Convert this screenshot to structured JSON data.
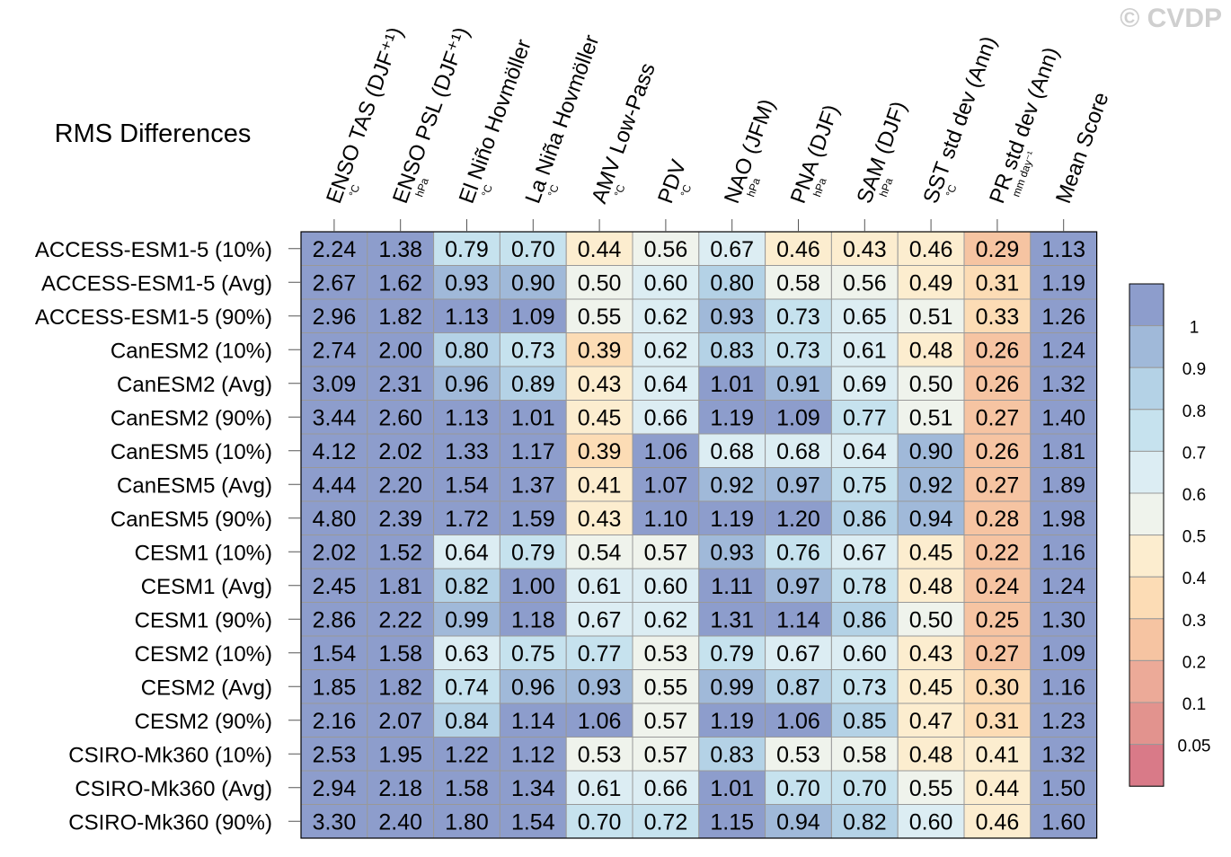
{
  "watermark": "© CVDP",
  "chart_data": {
    "type": "heatmap",
    "title": "RMS Differences",
    "columns": [
      {
        "label": "ENSO TAS (DJF⁺¹)",
        "unit": "°C"
      },
      {
        "label": "ENSO PSL (DJF⁺¹)",
        "unit": "hPa"
      },
      {
        "label": "El Niño Hovmöller",
        "unit": "°C"
      },
      {
        "label": "La Niña Hovmöller",
        "unit": "°C"
      },
      {
        "label": "AMV Low-Pass",
        "unit": "°C"
      },
      {
        "label": "PDV",
        "unit": "°C"
      },
      {
        "label": "NAO (JFM)",
        "unit": "hPa"
      },
      {
        "label": "PNA (DJF)",
        "unit": "hPa"
      },
      {
        "label": "SAM (DJF)",
        "unit": "hPa"
      },
      {
        "label": "SST std dev (Ann)",
        "unit": "°C"
      },
      {
        "label": "PR std dev (Ann)",
        "unit": "mm day⁻¹"
      },
      {
        "label": "Mean Score",
        "unit": ""
      }
    ],
    "rows": [
      "ACCESS-ESM1-5 (10%)",
      "ACCESS-ESM1-5 (Avg)",
      "ACCESS-ESM1-5 (90%)",
      "CanESM2 (10%)",
      "CanESM2 (Avg)",
      "CanESM2 (90%)",
      "CanESM5 (10%)",
      "CanESM5 (Avg)",
      "CanESM5 (90%)",
      "CESM1 (10%)",
      "CESM1 (Avg)",
      "CESM1 (90%)",
      "CESM2 (10%)",
      "CESM2 (Avg)",
      "CESM2 (90%)",
      "CSIRO-Mk360 (10%)",
      "CSIRO-Mk360 (Avg)",
      "CSIRO-Mk360 (90%)"
    ],
    "values": [
      [
        "2.24",
        "1.38",
        "0.79",
        "0.70",
        "0.44",
        "0.56",
        "0.67",
        "0.46",
        "0.43",
        "0.46",
        "0.29",
        "1.13"
      ],
      [
        "2.67",
        "1.62",
        "0.93",
        "0.90",
        "0.50",
        "0.60",
        "0.80",
        "0.58",
        "0.56",
        "0.49",
        "0.31",
        "1.19"
      ],
      [
        "2.96",
        "1.82",
        "1.13",
        "1.09",
        "0.55",
        "0.62",
        "0.93",
        "0.73",
        "0.65",
        "0.51",
        "0.33",
        "1.26"
      ],
      [
        "2.74",
        "2.00",
        "0.80",
        "0.73",
        "0.39",
        "0.62",
        "0.83",
        "0.73",
        "0.61",
        "0.48",
        "0.26",
        "1.24"
      ],
      [
        "3.09",
        "2.31",
        "0.96",
        "0.89",
        "0.43",
        "0.64",
        "1.01",
        "0.91",
        "0.69",
        "0.50",
        "0.26",
        "1.32"
      ],
      [
        "3.44",
        "2.60",
        "1.13",
        "1.01",
        "0.45",
        "0.66",
        "1.19",
        "1.09",
        "0.77",
        "0.51",
        "0.27",
        "1.40"
      ],
      [
        "4.12",
        "2.02",
        "1.33",
        "1.17",
        "0.39",
        "1.06",
        "0.68",
        "0.68",
        "0.64",
        "0.90",
        "0.26",
        "1.81"
      ],
      [
        "4.44",
        "2.20",
        "1.54",
        "1.37",
        "0.41",
        "1.07",
        "0.92",
        "0.97",
        "0.75",
        "0.92",
        "0.27",
        "1.89"
      ],
      [
        "4.80",
        "2.39",
        "1.72",
        "1.59",
        "0.43",
        "1.10",
        "1.19",
        "1.20",
        "0.86",
        "0.94",
        "0.28",
        "1.98"
      ],
      [
        "2.02",
        "1.52",
        "0.64",
        "0.79",
        "0.54",
        "0.57",
        "0.93",
        "0.76",
        "0.67",
        "0.45",
        "0.22",
        "1.16"
      ],
      [
        "2.45",
        "1.81",
        "0.82",
        "1.00",
        "0.61",
        "0.60",
        "1.11",
        "0.97",
        "0.78",
        "0.48",
        "0.24",
        "1.24"
      ],
      [
        "2.86",
        "2.22",
        "0.99",
        "1.18",
        "0.67",
        "0.62",
        "1.31",
        "1.14",
        "0.86",
        "0.50",
        "0.25",
        "1.30"
      ],
      [
        "1.54",
        "1.58",
        "0.63",
        "0.75",
        "0.77",
        "0.53",
        "0.79",
        "0.67",
        "0.60",
        "0.43",
        "0.27",
        "1.09"
      ],
      [
        "1.85",
        "1.82",
        "0.74",
        "0.96",
        "0.93",
        "0.55",
        "0.99",
        "0.87",
        "0.73",
        "0.45",
        "0.30",
        "1.16"
      ],
      [
        "2.16",
        "2.07",
        "0.84",
        "1.14",
        "1.06",
        "0.57",
        "1.19",
        "1.06",
        "0.85",
        "0.47",
        "0.31",
        "1.23"
      ],
      [
        "2.53",
        "1.95",
        "1.22",
        "1.12",
        "0.53",
        "0.57",
        "0.83",
        "0.53",
        "0.58",
        "0.48",
        "0.41",
        "1.32"
      ],
      [
        "2.94",
        "2.18",
        "1.58",
        "1.34",
        "0.61",
        "0.66",
        "1.01",
        "0.70",
        "0.70",
        "0.55",
        "0.44",
        "1.50"
      ],
      [
        "3.30",
        "2.40",
        "1.80",
        "1.54",
        "0.70",
        "0.72",
        "1.15",
        "0.94",
        "0.82",
        "0.60",
        "0.46",
        "1.60"
      ]
    ],
    "colorbar": {
      "labels": [
        "1",
        "0.9",
        "0.8",
        "0.7",
        "0.6",
        "0.5",
        "0.4",
        "0.3",
        "0.2",
        "0.1",
        "0.05"
      ],
      "thresholds": [
        1,
        0.9,
        0.8,
        0.7,
        0.6,
        0.5,
        0.4,
        0.3,
        0.2,
        0.1,
        0.05
      ],
      "colors": [
        "#8d9dcc",
        "#a0b9d9",
        "#b4d2e6",
        "#c6e2ee",
        "#dcedf3",
        "#eff3ec",
        "#fcedcf",
        "#fcdcb5",
        "#f6c4a2",
        "#ecaa98",
        "#e2938e",
        "#d97a88"
      ]
    }
  }
}
